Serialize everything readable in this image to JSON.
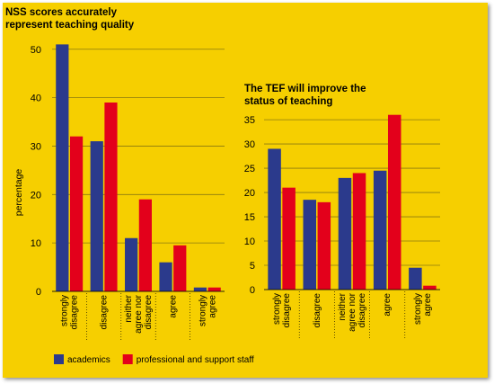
{
  "colors": {
    "background": "#f6cf00",
    "academics": "#2b3a8c",
    "staff": "#e3001b",
    "grid": "#8a7a10"
  },
  "chart_data": [
    {
      "type": "bar",
      "title": [
        "NSS scores accurately",
        "represent teaching quality"
      ],
      "ylabel": "percentage",
      "ylim": [
        0,
        52
      ],
      "yticks": [
        0,
        10,
        20,
        30,
        40,
        50
      ],
      "categories": [
        [
          "strongly",
          "disagree"
        ],
        [
          "disagree"
        ],
        [
          "neither",
          "agree nor",
          "disagree"
        ],
        [
          "agree"
        ],
        [
          "strongly",
          "agree"
        ]
      ],
      "series": [
        {
          "name": "academics",
          "color_key": "academics",
          "values": [
            51,
            31,
            11,
            6,
            0.8
          ]
        },
        {
          "name": "professional and support staff",
          "color_key": "staff",
          "values": [
            32,
            39,
            19,
            9.5,
            0.8
          ]
        }
      ]
    },
    {
      "type": "bar",
      "title": [
        "The TEF will improve the",
        "status of teaching"
      ],
      "ylabel": "",
      "ylim": [
        0,
        36.5
      ],
      "yticks": [
        0,
        5,
        10,
        15,
        20,
        25,
        30,
        35
      ],
      "categories": [
        [
          "strongly",
          "disagree"
        ],
        [
          "disagree"
        ],
        [
          "neither",
          "agree nor",
          "disagree"
        ],
        [
          "agree"
        ],
        [
          "strongly",
          "agree"
        ]
      ],
      "series": [
        {
          "name": "academics",
          "color_key": "academics",
          "values": [
            29,
            18.5,
            23,
            24.5,
            4.5
          ]
        },
        {
          "name": "professional and support staff",
          "color_key": "staff",
          "values": [
            21,
            18,
            24,
            36,
            0.8
          ]
        }
      ]
    }
  ],
  "legend": [
    {
      "label": "academics",
      "color_key": "academics"
    },
    {
      "label": "professional and support staff",
      "color_key": "staff"
    }
  ]
}
